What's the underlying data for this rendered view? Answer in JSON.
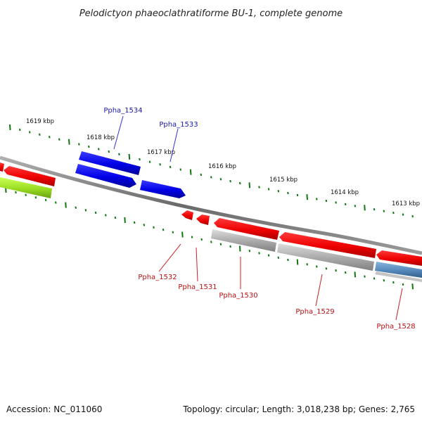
{
  "title": "Pelodictyon phaeoclathratiforme BU-1, complete genome",
  "footer": {
    "accession": "Accession: NC_011060",
    "topology": "Topology: circular; Length: 3,018,238 bp; Genes: 2,765"
  },
  "colors": {
    "backbone": "#7a7a7a",
    "forward_gene": "#0000ee",
    "reverse_gene": "#ee0000",
    "rna_feature": "#99dd22",
    "gray_feature": "#a8a8a8",
    "blue_gray_feature": "#5588bb",
    "tick": "#117711",
    "label_blue": "#1a1aa8",
    "label_red": "#bb1111"
  },
  "scale_labels": [
    "1619 kbp",
    "1618 kbp",
    "1617 kbp",
    "1616 kbp",
    "1615 kbp",
    "1614 kbp",
    "1613 kbp"
  ],
  "gene_labels": {
    "forward": [
      "Ppha_1534",
      "Ppha_1533"
    ],
    "reverse": [
      "Ppha_1532",
      "Ppha_1531",
      "Ppha_1530",
      "Ppha_1529",
      "Ppha_1528"
    ]
  }
}
